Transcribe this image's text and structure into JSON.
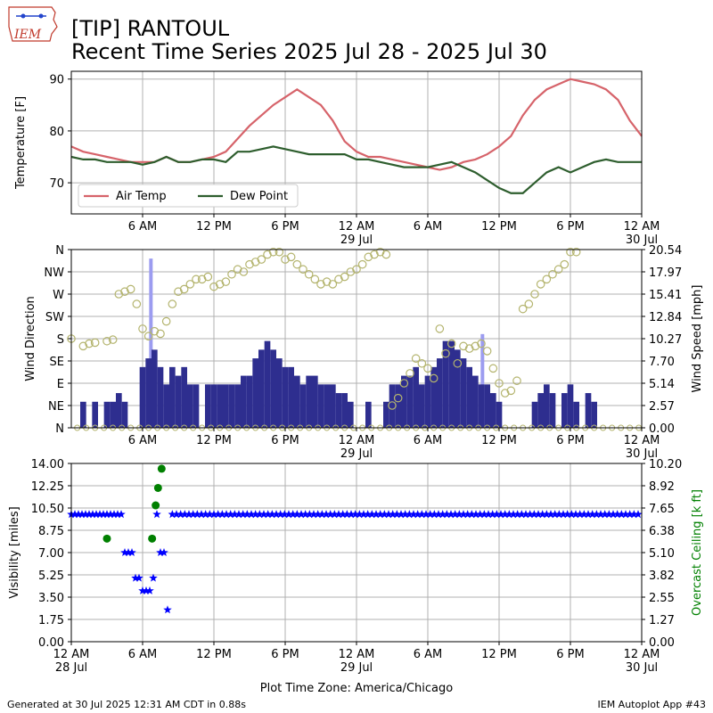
{
  "header": {
    "title_line1": "[TIP] RANTOUL",
    "title_line2": "Recent Time Series 2025 Jul 28 - 2025 Jul 30",
    "logo_text": "IEM"
  },
  "footer": {
    "generated": "Generated at 30 Jul 2025 12:31 AM CDT in 0.88s",
    "app": "IEM Autoplot App #43",
    "timezone": "Plot Time Zone: America/Chicago"
  },
  "colors": {
    "air_temp": "#d6636a",
    "dew_point": "#2e5e2e",
    "wind_bar": "#2e2e8f",
    "gust_bar": "#9c9cf0",
    "wind_dir": "#b4b46e",
    "visibility": "#0000ff",
    "ceiling": "#008000",
    "grid": "#b0b0b0"
  },
  "time_axis": {
    "x_range_hours": [
      0,
      48
    ],
    "tick_hours": [
      6,
      12,
      18,
      24,
      30,
      36,
      42,
      48
    ],
    "tick_labels": [
      "6 AM",
      "12 PM",
      "6 PM",
      "12 AM",
      "6 AM",
      "12 PM",
      "6 PM",
      "12 AM"
    ],
    "date_labels": {
      "24": "29 Jul",
      "48": "30 Jul"
    },
    "bottom_tick_hours": [
      0,
      6,
      12,
      18,
      24,
      30,
      36,
      42,
      48
    ],
    "bottom_tick_labels": [
      "12 AM",
      "6 AM",
      "12 PM",
      "6 PM",
      "12 AM",
      "6 AM",
      "12 PM",
      "6 PM",
      "12 AM"
    ],
    "bottom_date_labels": {
      "0": "28 Jul",
      "24": "29 Jul",
      "48": "30 Jul"
    }
  },
  "chart_data": [
    {
      "type": "line",
      "panel": "temperature",
      "ylabel": "Temperature [F]",
      "yticks": [
        70,
        80,
        90
      ],
      "ylim": [
        64,
        91.5
      ],
      "grid": true,
      "legend_position": "lower-left",
      "series": [
        {
          "name": "Air Temp",
          "x": [
            0,
            1,
            2,
            3,
            4,
            5,
            6,
            7,
            8,
            9,
            10,
            11,
            12,
            13,
            14,
            15,
            16,
            17,
            18,
            19,
            20,
            21,
            22,
            23,
            24,
            25,
            26,
            27,
            28,
            29,
            30,
            31,
            32,
            33,
            34,
            35,
            36,
            37,
            38,
            39,
            40,
            41,
            42,
            43,
            44,
            45,
            46,
            47,
            48
          ],
          "values": [
            77,
            76,
            75.5,
            75,
            74.5,
            74,
            74,
            74,
            75,
            74,
            74,
            74.5,
            75,
            76,
            78.5,
            81,
            83,
            85,
            86.5,
            88,
            86.5,
            85,
            82,
            78,
            76,
            75,
            75,
            74.5,
            74,
            73.5,
            73,
            72.5,
            73,
            74,
            74.5,
            75.5,
            77,
            79,
            83,
            86,
            88,
            89,
            90,
            89.5,
            89,
            88,
            86,
            82,
            79
          ]
        },
        {
          "name": "Dew Point",
          "x": [
            0,
            1,
            2,
            3,
            4,
            5,
            6,
            7,
            8,
            9,
            10,
            11,
            12,
            13,
            14,
            15,
            16,
            17,
            18,
            19,
            20,
            21,
            22,
            23,
            24,
            25,
            26,
            27,
            28,
            29,
            30,
            31,
            32,
            33,
            34,
            35,
            36,
            37,
            38,
            39,
            40,
            41,
            42,
            43,
            44,
            45,
            46,
            47,
            48
          ],
          "values": [
            75,
            74.5,
            74.5,
            74,
            74,
            74,
            73.5,
            74,
            75,
            74,
            74,
            74.5,
            74.5,
            74,
            76,
            76,
            76.5,
            77,
            76.5,
            76,
            75.5,
            75.5,
            75.5,
            75.5,
            74.5,
            74.5,
            74,
            73.5,
            73,
            73,
            73,
            73.5,
            74,
            73,
            72,
            70.5,
            69,
            68,
            68,
            70,
            72,
            73,
            72,
            73,
            74,
            74.5,
            74,
            74,
            74
          ]
        }
      ]
    },
    {
      "type": "bar",
      "panel": "wind",
      "ylabel": "Wind Direction",
      "y2label": "Wind Speed [mph]",
      "direction_ticks": [
        "N",
        "NE",
        "E",
        "SE",
        "S",
        "SW",
        "W",
        "NW",
        "N"
      ],
      "speed_ticks": [
        "0.00",
        "2.57",
        "5.14",
        "7.70",
        "10.27",
        "12.84",
        "15.41",
        "17.97",
        "20.54"
      ],
      "speed_max": 20.54,
      "grid": true,
      "speed_hours": [
        0,
        0.5,
        1,
        1.5,
        2,
        2.5,
        3,
        3.5,
        4,
        4.5,
        5,
        5.5,
        6,
        6.5,
        7,
        7.5,
        8,
        8.5,
        9,
        9.5,
        10,
        10.5,
        11,
        11.5,
        12,
        12.5,
        13,
        13.5,
        14,
        14.5,
        15,
        15.5,
        16,
        16.5,
        17,
        17.5,
        18,
        18.5,
        19,
        19.5,
        20,
        20.5,
        21,
        21.5,
        22,
        22.5,
        23,
        23.5,
        24,
        24.5,
        25,
        25.5,
        26,
        26.5,
        27,
        27.5,
        28,
        28.5,
        29,
        29.5,
        30,
        30.5,
        31,
        31.5,
        32,
        32.5,
        33,
        33.5,
        34,
        34.5,
        35,
        35.5,
        36,
        36.5,
        37,
        37.5,
        38,
        38.5,
        39,
        39.5,
        40,
        40.5,
        41,
        41.5,
        42,
        42.5,
        43,
        43.5,
        44,
        44.5,
        45,
        45.5,
        46,
        46.5,
        47,
        47.5,
        48
      ],
      "speed_values": [
        0,
        0,
        3,
        0,
        3,
        0,
        3,
        3,
        4,
        3,
        0,
        0,
        7,
        8,
        9,
        7,
        5,
        7,
        6,
        7,
        5,
        5,
        0,
        5,
        5,
        5,
        5,
        5,
        5,
        6,
        6,
        8,
        9,
        10,
        9,
        8,
        7,
        7,
        6,
        5,
        6,
        6,
        5,
        5,
        5,
        4,
        4,
        3,
        0,
        0,
        3,
        0,
        0,
        3,
        5,
        5,
        6,
        6,
        7,
        5,
        6,
        7,
        8,
        10,
        10,
        9,
        8,
        7,
        6,
        5,
        5,
        4,
        3,
        0,
        0,
        0,
        0,
        0,
        3,
        4,
        5,
        4,
        0,
        4,
        5,
        3,
        0,
        4,
        3,
        0,
        0,
        0,
        0,
        0,
        0,
        0,
        0
      ],
      "gust_hours": [
        6.7,
        34.6
      ],
      "gust_values": [
        19.5,
        10.8
      ],
      "direction_hours": [
        0,
        1,
        1.5,
        2,
        3,
        3.5,
        4,
        4.5,
        5,
        5.5,
        6,
        6.5,
        7,
        7.5,
        8,
        8.5,
        9,
        9.5,
        10,
        10.5,
        11,
        11.5,
        12,
        12.5,
        13,
        13.5,
        14,
        14.5,
        15,
        15.5,
        16,
        16.5,
        17,
        17.5,
        18,
        18.5,
        19,
        19.5,
        20,
        20.5,
        21,
        21.5,
        22,
        22.5,
        23,
        23.5,
        24,
        24.5,
        25,
        25.5,
        26,
        26.5,
        27,
        27.5,
        28,
        28.5,
        29,
        29.5,
        30,
        30.5,
        31,
        31.5,
        32,
        32.5,
        33,
        33.5,
        34,
        34.5,
        35,
        35.5,
        36,
        36.5,
        37,
        37.5,
        38,
        38.5,
        39,
        39.5,
        40,
        40.5,
        41,
        41.5,
        42,
        42.5
      ],
      "direction_degrees": [
        180,
        165,
        170,
        172,
        175,
        178,
        270,
        275,
        280,
        250,
        200,
        185,
        195,
        190,
        215,
        250,
        275,
        280,
        290,
        300,
        300,
        305,
        285,
        290,
        295,
        310,
        320,
        315,
        330,
        335,
        340,
        350,
        355,
        355,
        340,
        345,
        330,
        320,
        310,
        300,
        290,
        295,
        290,
        300,
        305,
        315,
        320,
        330,
        345,
        350,
        355,
        350,
        45,
        60,
        90,
        110,
        140,
        130,
        120,
        100,
        200,
        150,
        170,
        130,
        165,
        160,
        165,
        170,
        155,
        120,
        90,
        70,
        75,
        95,
        240,
        250,
        270,
        290,
        300,
        310,
        320,
        330,
        355,
        355
      ]
    },
    {
      "type": "scatter",
      "panel": "visibility",
      "ylabel": "Visibility [miles]",
      "y2label": "Overcast Ceiling [k ft]",
      "visibility_ticks": [
        "0.00",
        "1.75",
        "3.50",
        "5.25",
        "7.00",
        "8.75",
        "10.50",
        "12.25",
        "14.00"
      ],
      "visibility_max": 14,
      "ceiling_ticks": [
        "0.00",
        "1.27",
        "2.55",
        "3.82",
        "5.10",
        "6.38",
        "7.65",
        "8.92",
        "10.20"
      ],
      "ceiling_max": 10.2,
      "grid": true,
      "visibility_hours": [
        0,
        0.3,
        0.6,
        0.9,
        1.2,
        1.5,
        1.8,
        2.1,
        2.4,
        2.7,
        3,
        3.3,
        3.6,
        3.9,
        4.2,
        4.5,
        4.8,
        5.1,
        5.4,
        5.7,
        6,
        6.3,
        6.6,
        6.9,
        7.2,
        7.5,
        7.8,
        8.1
      ],
      "visibility_values": [
        10,
        10,
        10,
        10,
        10,
        10,
        10,
        10,
        10,
        10,
        10,
        10,
        10,
        10,
        10,
        7,
        7,
        7,
        5,
        5,
        4,
        4,
        4,
        5,
        10,
        7,
        7,
        2.5
      ],
      "ceiling_points_hours": [
        3.0,
        6.8,
        7.1,
        7.3,
        7.6
      ],
      "ceiling_points_values": [
        5.9,
        5.9,
        7.8,
        8.8,
        9.9
      ]
    }
  ]
}
